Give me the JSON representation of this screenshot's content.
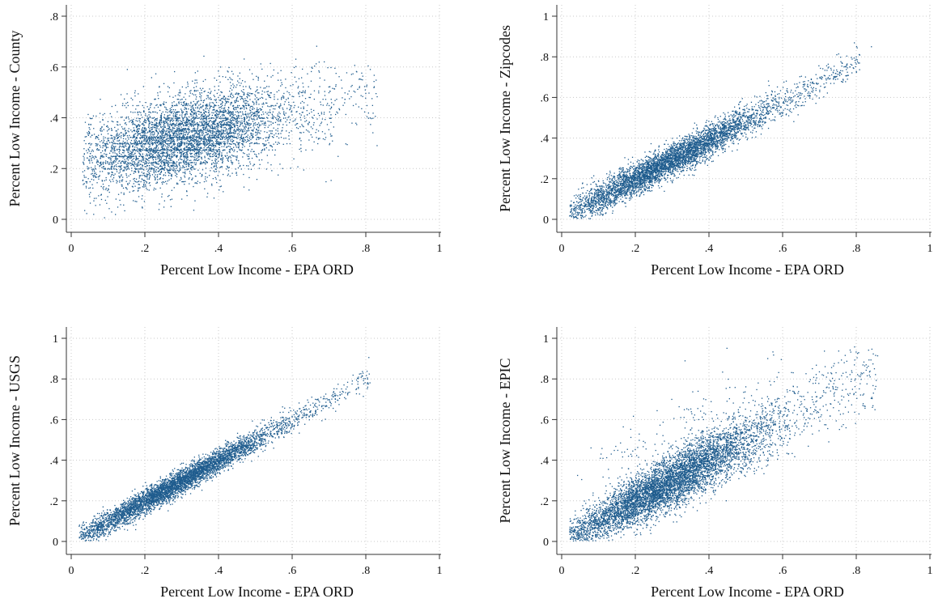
{
  "colors": {
    "points": "#1f5c8e",
    "grid": "#c8c8c8",
    "axis": "#333333"
  },
  "chart_data": [
    {
      "type": "scatter",
      "xlabel": "Percent Low Income - EPA ORD",
      "ylabel": "Percent Low Income - County",
      "xlim": [
        0,
        1
      ],
      "ylim": [
        0,
        0.8
      ],
      "xticks": [
        "0",
        ".2",
        ".4",
        ".6",
        ".8",
        "1"
      ],
      "yticks": [
        "0",
        ".2",
        ".4",
        ".6",
        ".8"
      ],
      "grid": true,
      "point_summary": {
        "n": 5200,
        "slope": 0.33,
        "intercept": 0.22,
        "spread": 0.085,
        "x_mode": 0.3,
        "x_range": [
          0.03,
          0.92
        ]
      }
    },
    {
      "type": "scatter",
      "xlabel": "Percent Low Income - EPA ORD",
      "ylabel": "Percent Low Income - Zipcodes",
      "xlim": [
        0,
        1
      ],
      "ylim": [
        0,
        1
      ],
      "xticks": [
        "0",
        ".2",
        ".4",
        ".6",
        ".8",
        "1"
      ],
      "yticks": [
        "0",
        ".2",
        ".4",
        ".6",
        ".8",
        "1"
      ],
      "grid": true,
      "point_summary": {
        "n": 5000,
        "slope": 0.95,
        "intercept": 0.01,
        "spread": 0.04,
        "x_mode": 0.28,
        "x_range": [
          0.02,
          0.9
        ]
      }
    },
    {
      "type": "scatter",
      "xlabel": "Percent Low Income - EPA ORD",
      "ylabel": "Percent Low Income - USGS",
      "xlim": [
        0,
        1
      ],
      "ylim": [
        0,
        1
      ],
      "xticks": [
        "0",
        ".2",
        ".4",
        ".6",
        ".8",
        "1"
      ],
      "yticks": [
        "0",
        ".2",
        ".4",
        ".6",
        ".8",
        "1"
      ],
      "grid": true,
      "point_summary": {
        "n": 5000,
        "slope": 1.0,
        "intercept": 0.0,
        "spread": 0.03,
        "x_mode": 0.28,
        "x_range": [
          0.02,
          0.9
        ]
      }
    },
    {
      "type": "scatter",
      "xlabel": "Percent Low Income - EPA ORD",
      "ylabel": "Percent Low Income - EPIC",
      "xlim": [
        0,
        1
      ],
      "ylim": [
        0,
        1
      ],
      "xticks": [
        "0",
        ".2",
        ".4",
        ".6",
        ".8",
        "1"
      ],
      "yticks": [
        "0",
        ".2",
        ".4",
        ".6",
        ".8",
        "1"
      ],
      "grid": true,
      "point_summary": {
        "n": 6500,
        "slope": 1.0,
        "intercept": 0.0,
        "spread": 0.07,
        "x_mode": 0.28,
        "x_range": [
          0.02,
          0.95
        ]
      }
    }
  ]
}
